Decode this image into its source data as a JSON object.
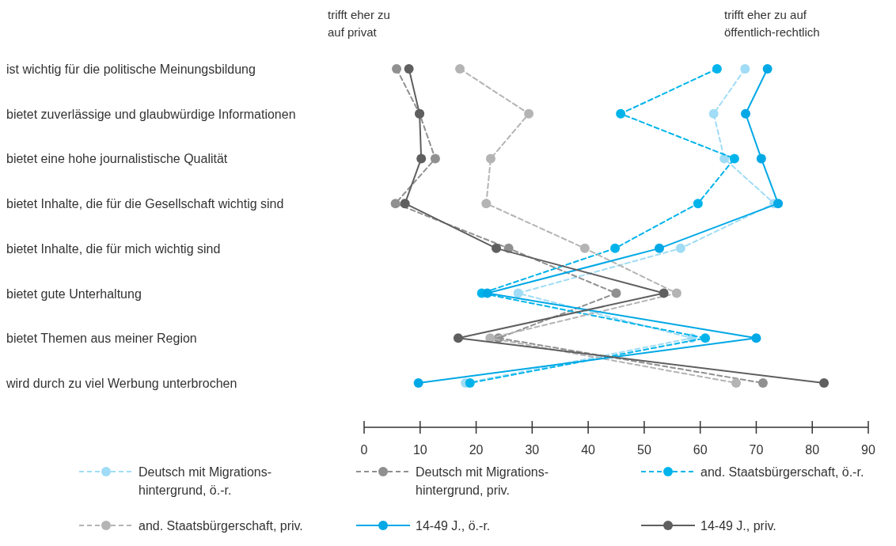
{
  "chart_data": {
    "type": "line",
    "orientation": "horizontal",
    "categories": [
      "ist wichtig für die politische Meinungsbildung",
      "bietet zuverlässige und glaubwürdige Informationen",
      "bietet eine hohe journalistische Qualität",
      "bietet Inhalte, die für die Gesellschaft wichtig sind",
      "bietet Inhalte, die für mich wichtig sind",
      "bietet gute Unterhaltung",
      "bietet Themen aus meiner Region",
      "wird durch zu viel Werbung unterbrochen"
    ],
    "series": [
      {
        "name": "Deutsch mit Migrations-\nhintergrund, ö.-r.",
        "color": "#a0dcf5",
        "line_style": "dashed",
        "values": [
          68,
          62.4,
          64.3,
          73.2,
          56.5,
          27.5,
          58.5,
          18.1
        ]
      },
      {
        "name": "Deutsch mit Migrations-\nhintergrund, priv.",
        "color": "#909090",
        "line_style": "dashed",
        "values": [
          5.8,
          9.9,
          12.7,
          5.6,
          25.8,
          45,
          24,
          71.2
        ]
      },
      {
        "name": "and. Staatsbürgerschaft, ö.-r.",
        "color": "#00b4eb",
        "line_style": "dashed",
        "values": [
          63,
          45.8,
          66.1,
          59.6,
          44.8,
          21,
          60.9,
          18.9
        ]
      },
      {
        "name": "and. Staatsbürgerschaft, priv.",
        "color": "#b4b4b4",
        "line_style": "dashed",
        "values": [
          17.1,
          29.4,
          22.6,
          21.8,
          39.4,
          55.8,
          22.5,
          66.4
        ]
      },
      {
        "name": "14-49 J., ö.-r.",
        "color": "#00a8e6",
        "line_style": "solid",
        "values": [
          72,
          68.1,
          70.9,
          73.9,
          52.7,
          22,
          70,
          9.7
        ]
      },
      {
        "name": "14-49 J., priv.",
        "color": "#5f5f5f",
        "line_style": "solid",
        "values": [
          8,
          9.9,
          10.2,
          7.3,
          23.6,
          53.5,
          16.8,
          82.1
        ]
      }
    ],
    "xlim": [
      0,
      90
    ],
    "xticks": [
      0,
      10,
      20,
      30,
      40,
      50,
      60,
      70,
      80,
      90
    ],
    "marker": "circle",
    "grid": false,
    "legend": "bottom",
    "annotations": [
      "trifft eher zu\nauf privat",
      "trifft eher zu auf\nöffentlich-rechtlich"
    ]
  }
}
